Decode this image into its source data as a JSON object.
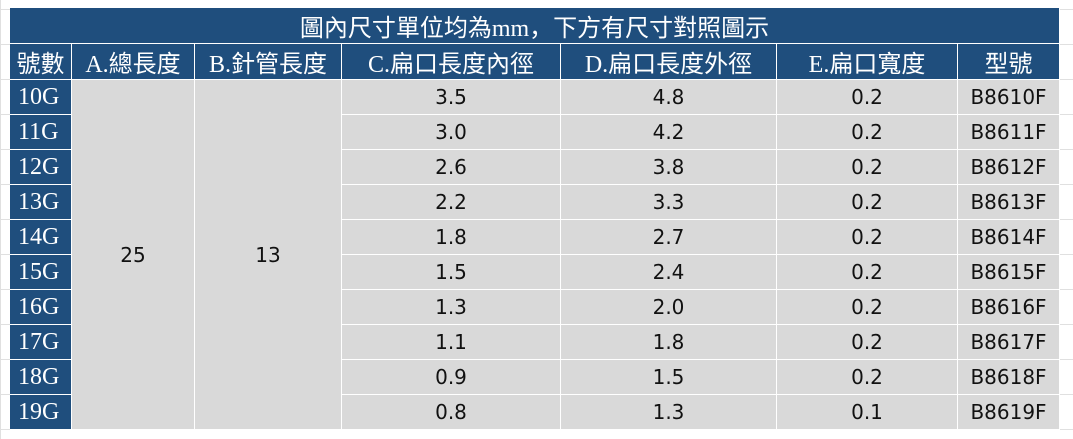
{
  "title": "圖內尺寸單位均為mm，下方有尺寸對照圖示",
  "headers": [
    "號數",
    "A.總長度",
    "B.針管長度",
    "C.扁口長度內徑",
    "D.扁口長度外徑",
    "E.扁口寬度",
    "型號"
  ],
  "total_length": "25",
  "needle_length": "13",
  "rows": [
    [
      "10G",
      "3.5",
      "4.8",
      "0.2",
      "B8610F"
    ],
    [
      "11G",
      "3.0",
      "4.2",
      "0.2",
      "B8611F"
    ],
    [
      "12G",
      "2.6",
      "3.8",
      "0.2",
      "B8612F"
    ],
    [
      "13G",
      "2.2",
      "3.3",
      "0.2",
      "B8613F"
    ],
    [
      "14G",
      "1.8",
      "2.7",
      "0.2",
      "B8614F"
    ],
    [
      "15G",
      "1.5",
      "2.4",
      "0.2",
      "B8615F"
    ],
    [
      "16G",
      "1.3",
      "2.0",
      "0.2",
      "B8616F"
    ],
    [
      "17G",
      "1.1",
      "1.8",
      "0.2",
      "B8617F"
    ],
    [
      "18G",
      "0.9",
      "1.5",
      "0.2",
      "B8618F"
    ],
    [
      "19G",
      "0.8",
      "1.3",
      "0.1",
      "B8619F"
    ]
  ]
}
